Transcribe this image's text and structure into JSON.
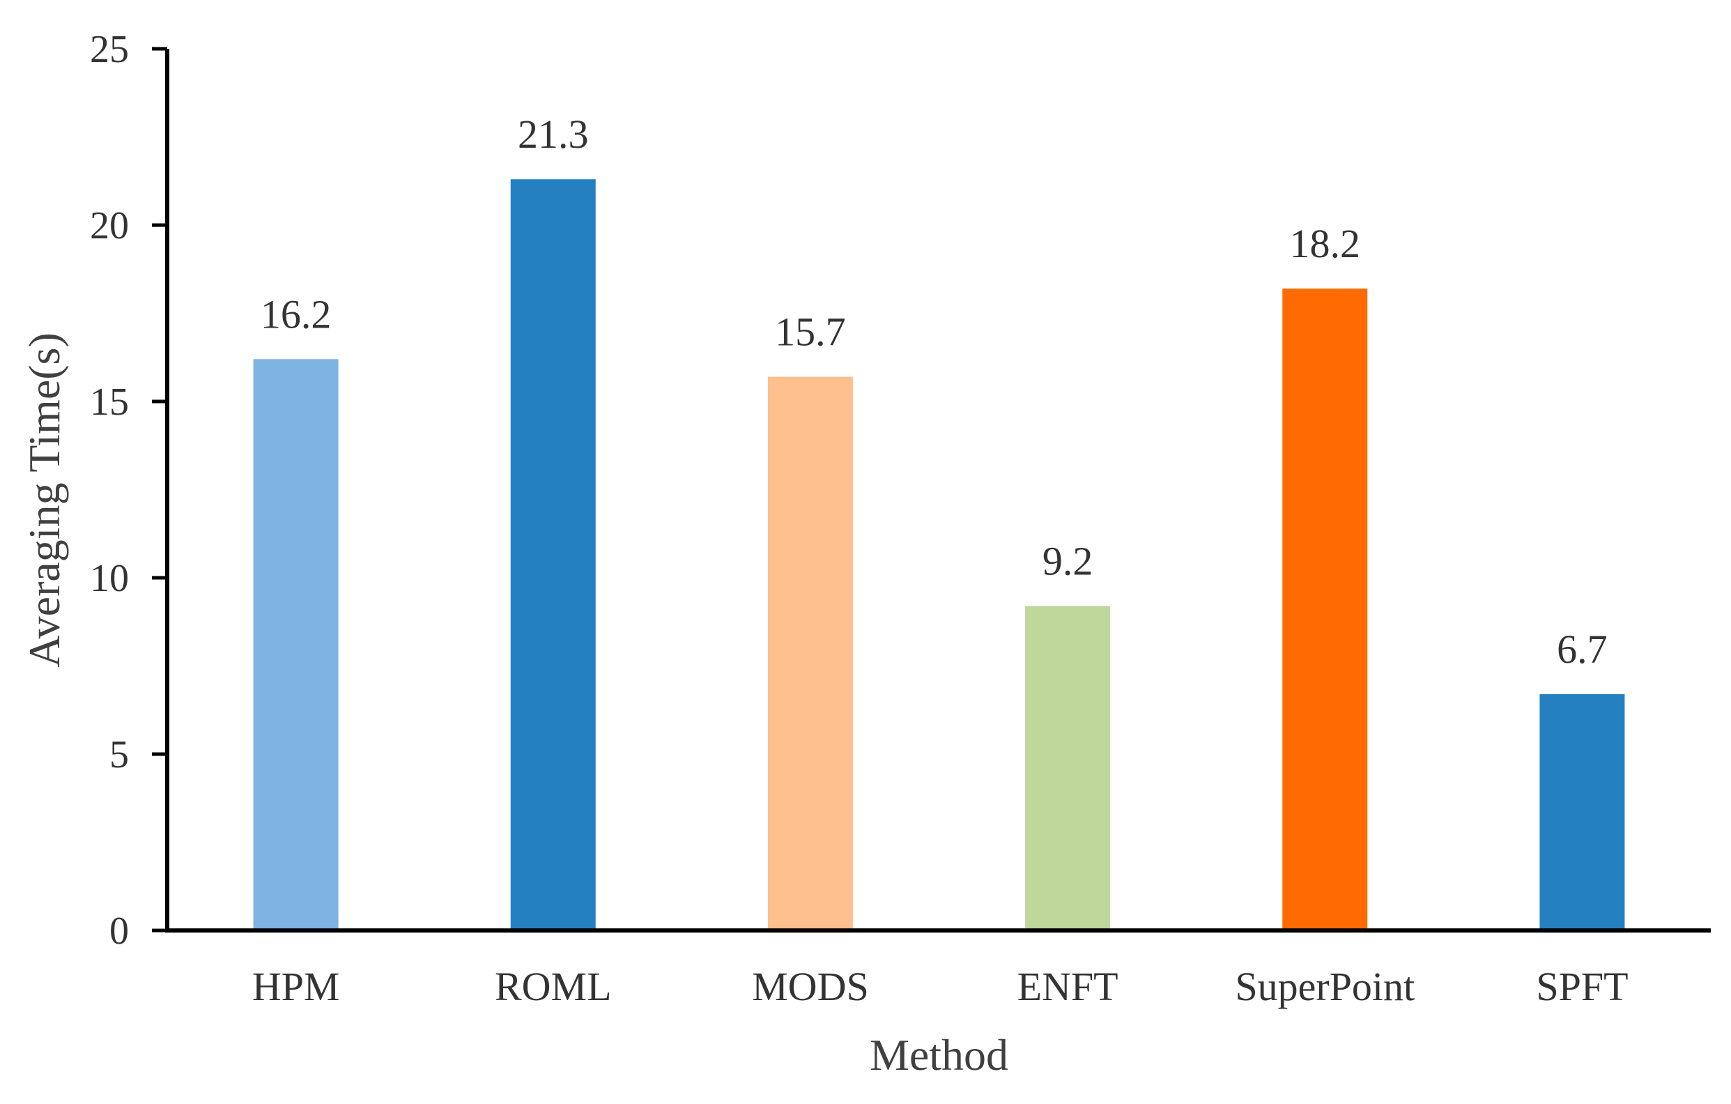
{
  "chart_data": {
    "type": "bar",
    "title": "",
    "xlabel": "Method",
    "ylabel": "Averaging Time(s)",
    "ylim": [
      0,
      25
    ],
    "yticks": [
      0,
      5,
      10,
      15,
      20,
      25
    ],
    "grid": false,
    "categories": [
      "HPM",
      "ROML",
      "MODS",
      "ENFT",
      "SuperPoint",
      "SPFT"
    ],
    "values": [
      16.2,
      21.3,
      15.7,
      9.2,
      18.2,
      6.7
    ],
    "value_labels": [
      "16.2",
      "21.3",
      "15.7",
      "9.2",
      "18.2",
      "6.7"
    ],
    "colors": [
      "#7EB3E3",
      "#2580C0",
      "#FDBF8E",
      "#BDD89A",
      "#FF6B00",
      "#2580C0"
    ]
  }
}
